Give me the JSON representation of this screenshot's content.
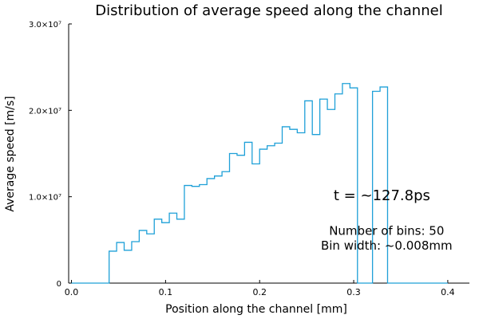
{
  "chart_data": {
    "type": "line",
    "style": "step-histogram",
    "title": "Distribution of average speed along the channel",
    "xlabel": "Position along the channel [mm]",
    "ylabel": "Average speed [m/s]",
    "xlim": [
      -0.003,
      0.423
    ],
    "ylim": [
      0,
      30000000
    ],
    "x_ticks": [
      {
        "value": 0.0,
        "label": "0.0"
      },
      {
        "value": 0.1,
        "label": "0.1"
      },
      {
        "value": 0.2,
        "label": "0.2"
      },
      {
        "value": 0.3,
        "label": "0.3"
      },
      {
        "value": 0.4,
        "label": "0.4"
      }
    ],
    "y_ticks": [
      {
        "value": 0,
        "label": "0"
      },
      {
        "value": 10000000,
        "label": "1.0×10⁷"
      },
      {
        "value": 20000000,
        "label": "2.0×10⁷"
      },
      {
        "value": 30000000,
        "label": "3.0×10⁷"
      }
    ],
    "grid": false,
    "legend": "none",
    "line_color": "#1fa0d8",
    "bin_edges": [
      0.0,
      0.008,
      0.016,
      0.024,
      0.032,
      0.04,
      0.048,
      0.056,
      0.064,
      0.072,
      0.08,
      0.088,
      0.096,
      0.104,
      0.112,
      0.12,
      0.128,
      0.136,
      0.144,
      0.152,
      0.16,
      0.168,
      0.176,
      0.184,
      0.192,
      0.2,
      0.208,
      0.216,
      0.224,
      0.232,
      0.24,
      0.248,
      0.256,
      0.264,
      0.272,
      0.28,
      0.288,
      0.296,
      0.304,
      0.312,
      0.32,
      0.328,
      0.336,
      0.344,
      0.352,
      0.36,
      0.368,
      0.376,
      0.384,
      0.392,
      0.4
    ],
    "values": [
      0,
      0,
      0,
      0,
      0,
      3700000,
      4700000,
      3800000,
      4800000,
      6100000,
      5700000,
      7400000,
      7000000,
      8100000,
      7400000,
      11300000,
      11200000,
      11400000,
      12100000,
      12400000,
      12900000,
      15000000,
      14800000,
      16300000,
      13800000,
      15500000,
      15900000,
      16200000,
      18100000,
      17800000,
      17400000,
      21100000,
      17200000,
      21300000,
      20100000,
      21900000,
      23100000,
      22600000,
      0,
      0,
      22200000,
      22700000,
      0,
      0,
      0,
      0,
      0,
      0,
      0,
      0
    ],
    "annotations": [
      {
        "text": "t = ~127.8ps",
        "x": 0.33,
        "y": 9600000,
        "size": "large"
      },
      {
        "text": "Number of bins: 50",
        "x": 0.335,
        "y": 5600000,
        "size": "medium"
      },
      {
        "text": "Bin width: ~0.008mm",
        "x": 0.335,
        "y": 3900000,
        "size": "medium"
      }
    ]
  }
}
